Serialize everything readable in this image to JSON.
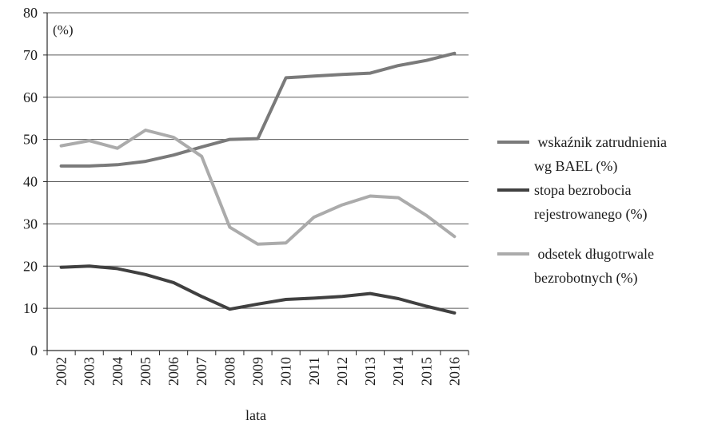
{
  "chart_data": {
    "type": "line",
    "unit_label": "(%)",
    "xlabel": "lata",
    "ylabel": "",
    "ylim": [
      0,
      80
    ],
    "yticks": [
      "0",
      "10",
      "20",
      "30",
      "40",
      "50",
      "60",
      "70",
      "80"
    ],
    "grid": true,
    "legend_position": "right",
    "categories": [
      "2002",
      "2003",
      "2004",
      "2005",
      "2006",
      "2007",
      "2008",
      "2009",
      "2010",
      "2011",
      "2012",
      "2013",
      "2014",
      "2015",
      "2016"
    ],
    "series": [
      {
        "name_lines": [
          " wskaźnik zatrudnienia",
          "wg BAEL (%)"
        ],
        "color": "#7a7a7a",
        "values": [
          43.7,
          43.7,
          44.0,
          44.8,
          46.3,
          48.2,
          50.0,
          50.2,
          64.6,
          65.0,
          65.4,
          65.7,
          67.5,
          68.7,
          70.4
        ]
      },
      {
        "name_lines": [
          "stopa bezrobocia",
          "rejestrowanego (%)"
        ],
        "color": "#404040",
        "values": [
          19.7,
          20.0,
          19.4,
          18.0,
          16.1,
          12.8,
          9.8,
          11.0,
          12.1,
          12.4,
          12.8,
          13.5,
          12.3,
          10.5,
          8.9
        ]
      },
      {
        "name_lines": [
          " odsetek długotrwale",
          "bezrobotnych (%)"
        ],
        "color": "#ababab",
        "values": [
          48.5,
          49.7,
          47.9,
          52.2,
          50.5,
          46.0,
          29.2,
          25.2,
          25.5,
          31.6,
          34.5,
          36.6,
          36.2,
          32.0,
          27.0
        ]
      }
    ]
  }
}
